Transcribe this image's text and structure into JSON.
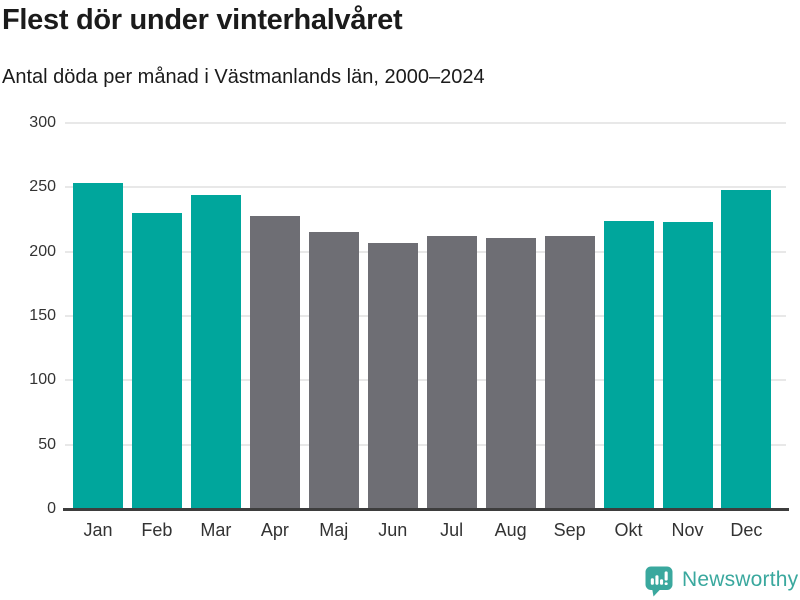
{
  "chart_data": {
    "type": "bar",
    "title": "Flest dör under vinterhalvåret",
    "subtitle": "Antal döda per månad i Västmanlands län, 2000–2024",
    "categories": [
      "Jan",
      "Feb",
      "Mar",
      "Apr",
      "Maj",
      "Jun",
      "Jul",
      "Aug",
      "Sep",
      "Okt",
      "Nov",
      "Dec"
    ],
    "values": [
      253,
      230,
      244,
      228,
      215,
      207,
      212,
      211,
      212,
      224,
      223,
      248
    ],
    "highlighted_categories": [
      "Jan",
      "Feb",
      "Mar",
      "Okt",
      "Nov",
      "Dec"
    ],
    "bar_colors": [
      "#00a69c",
      "#00a69c",
      "#00a69c",
      "#6e6e74",
      "#6e6e74",
      "#6e6e74",
      "#6e6e74",
      "#6e6e74",
      "#6e6e74",
      "#00a69c",
      "#00a69c",
      "#00a69c"
    ],
    "xlabel": "",
    "ylabel": "",
    "ylim": [
      0,
      300
    ],
    "yticks": [
      0,
      50,
      100,
      150,
      200,
      250,
      300
    ],
    "grid": "horizontal",
    "legend": "none",
    "colors": {
      "highlight_bar": "#00a69c",
      "base_bar": "#6e6e74",
      "gridline": "#e8e8e8",
      "axis_line": "#3d3d3d",
      "tick_label": "#333333",
      "title_text": "#1b1b1b"
    }
  },
  "footer": {
    "brand_label": "Newsworthy",
    "brand_color": "#3aa89e",
    "logo_icon": "speech-bubble-bar-chart-icon"
  }
}
